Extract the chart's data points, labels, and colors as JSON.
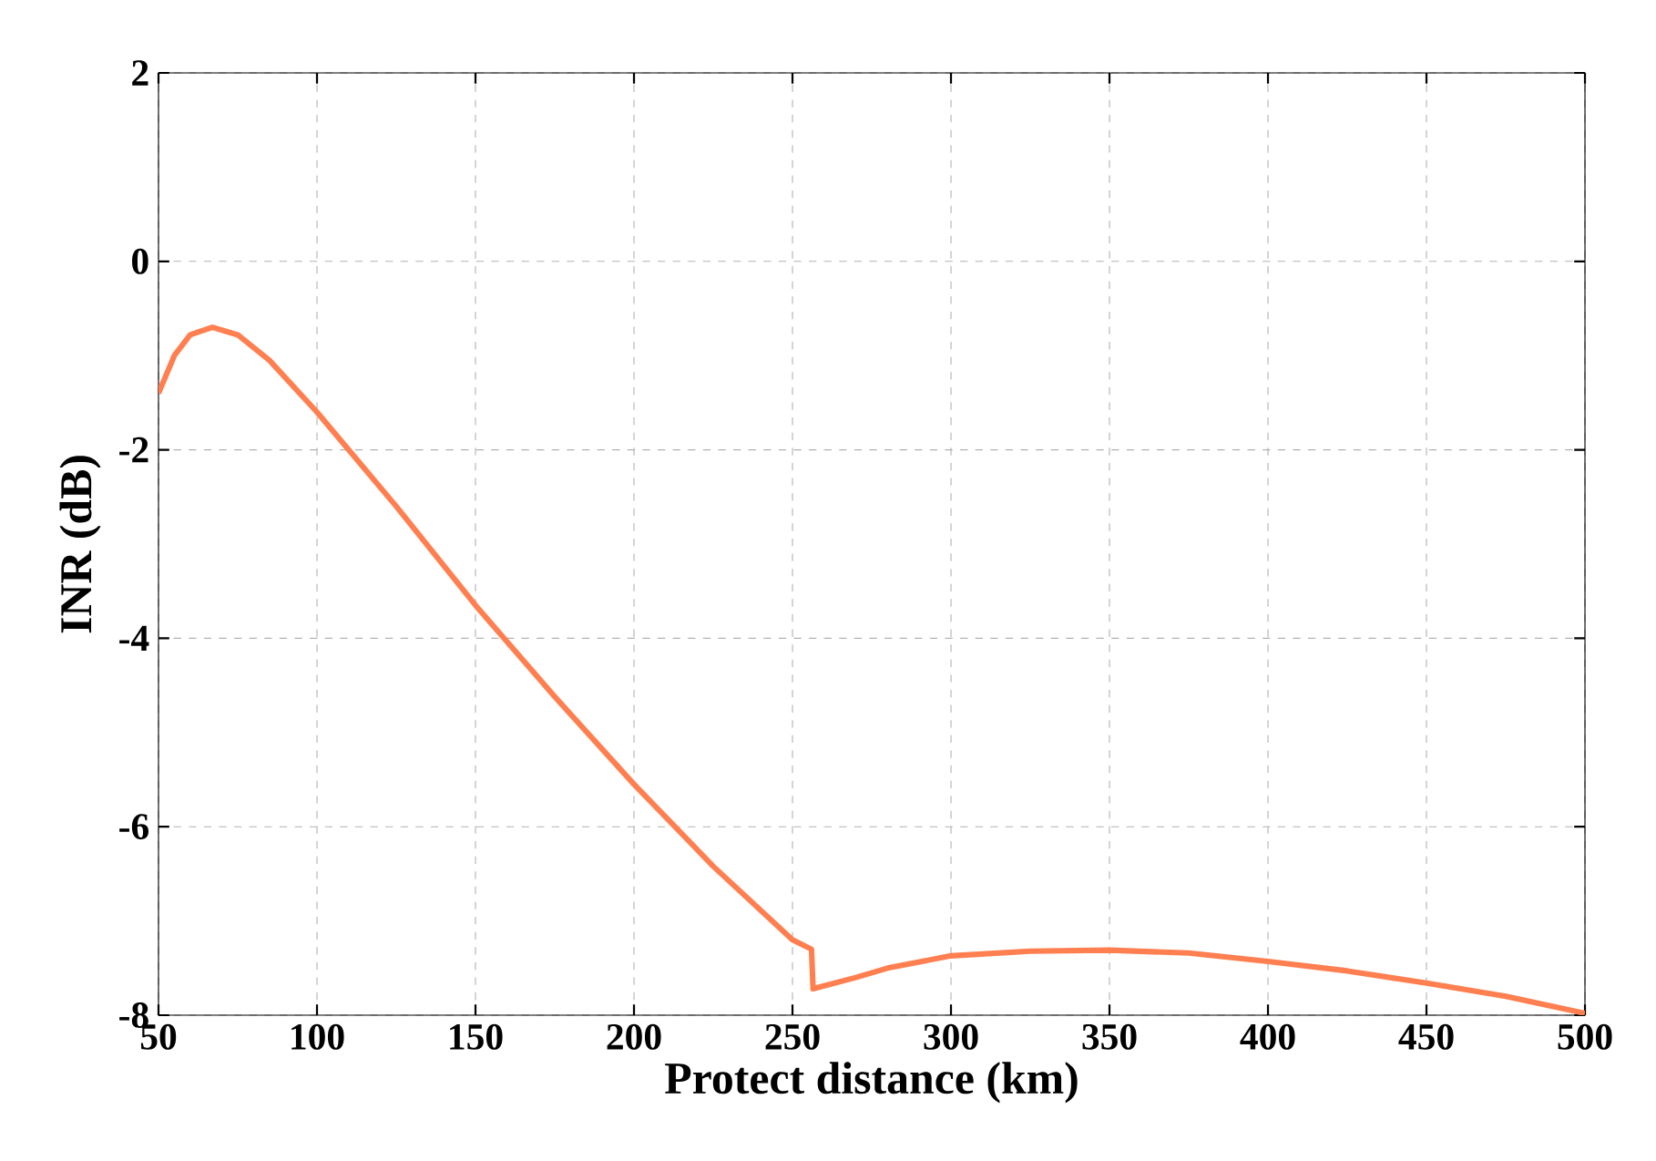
{
  "chart_data": {
    "type": "line",
    "xlabel": "Protect distance (km)",
    "ylabel": "INR (dB)",
    "x": [
      50,
      55,
      60,
      67,
      75,
      85,
      100,
      125,
      150,
      175,
      200,
      225,
      250,
      256,
      256.5,
      270,
      280,
      300,
      325,
      350,
      375,
      400,
      425,
      450,
      475,
      500
    ],
    "values": [
      -1.4,
      -1.0,
      -0.78,
      -0.7,
      -0.78,
      -1.05,
      -1.6,
      -2.6,
      -3.65,
      -4.62,
      -5.55,
      -6.42,
      -7.2,
      -7.3,
      -7.72,
      -7.6,
      -7.5,
      -7.37,
      -7.32,
      -7.31,
      -7.34,
      -7.43,
      -7.53,
      -7.66,
      -7.8,
      -7.98
    ],
    "color": "#ff7f50",
    "xlim": [
      50,
      500
    ],
    "ylim": [
      -8,
      2
    ],
    "xticks": [
      50,
      100,
      150,
      200,
      250,
      300,
      350,
      400,
      450,
      500
    ],
    "yticks": [
      -8,
      -6,
      -4,
      -2,
      0,
      2
    ],
    "grid": true
  }
}
